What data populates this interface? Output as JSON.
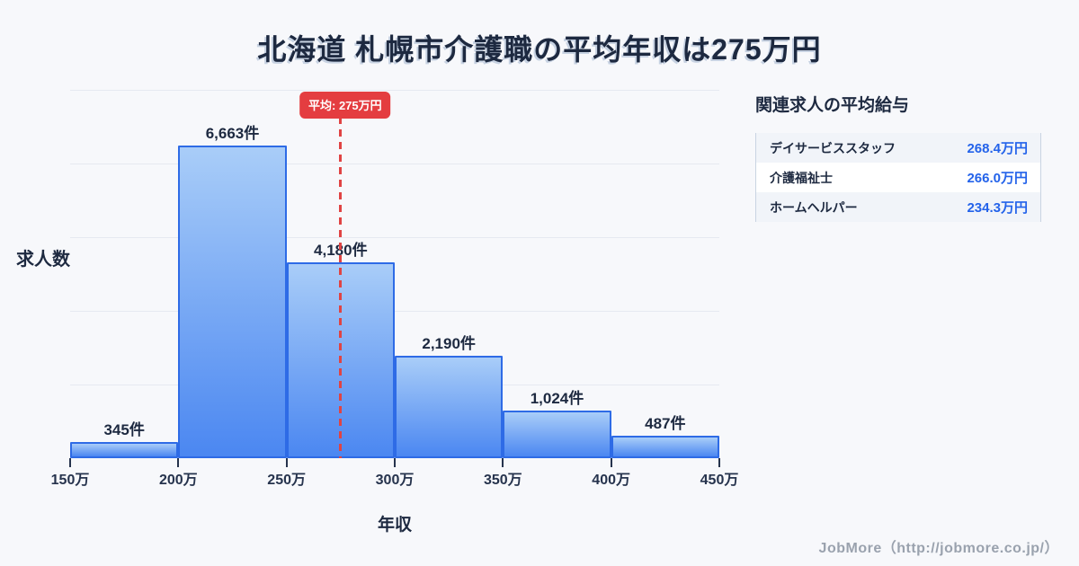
{
  "chart_data": {
    "type": "bar",
    "title": "北海道 札幌市介護職の平均年収は275万円",
    "xlabel": "年収",
    "ylabel": "求人数",
    "x_ticks": [
      "150万",
      "200万",
      "250万",
      "300万",
      "350万",
      "400万",
      "450万"
    ],
    "x_range_man": [
      150,
      450
    ],
    "categories": [
      "150万-200万",
      "200万-250万",
      "250万-300万",
      "300万-350万",
      "350万-400万",
      "400万-450万"
    ],
    "values": [
      345,
      6663,
      4180,
      2190,
      1024,
      487
    ],
    "value_labels": [
      "345件",
      "6,663件",
      "4,180件",
      "2,190件",
      "1,024件",
      "487件"
    ],
    "ylim": [
      0,
      7850
    ],
    "grid": "horizontal",
    "legend": "none",
    "average": {
      "label": "平均: 275万円",
      "value_man": 275
    }
  },
  "panel": {
    "title": "関連求人の平均給与",
    "rows": [
      {
        "name": "デイサービススタッフ",
        "value": "268.4万円"
      },
      {
        "name": "介護福祉士",
        "value": "266.0万円"
      },
      {
        "name": "ホームヘルパー",
        "value": "234.3万円"
      }
    ]
  },
  "footer": {
    "credit": "JobMore（http://jobmore.co.jp/）"
  },
  "colors": {
    "background": "#f7f8fb",
    "title_navy": "#1d2940",
    "bar_fill_top": "#a9cdf8",
    "bar_fill_bottom": "#4b87f1",
    "bar_border": "#2e6be6",
    "average_red": "#e43d40",
    "value_blue": "#2463ea",
    "gridline": "#e6e9f1",
    "credit_gray": "#9aa2ae"
  }
}
